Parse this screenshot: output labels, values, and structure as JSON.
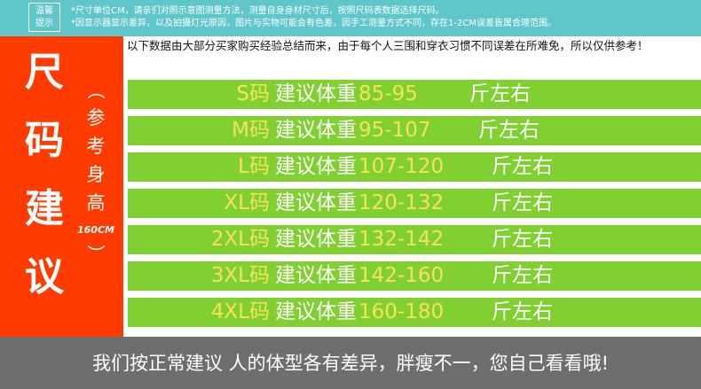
{
  "tip": {
    "line1": "温馨",
    "line2": "提示"
  },
  "top_note": {
    "line1": "*尺寸单位CM，请亲们对照示意图测量方法，测量自身身材尺寸后，按照尺码表数据选择尺码。",
    "line2": "*因显示器显示差异，以及拍摄灯光原因，图片与实物可能会有色差，因手工测量方式不同，存在1-2CM误差皆属合理范围。"
  },
  "left_title": [
    "尺",
    "码",
    "建",
    "议"
  ],
  "reference": {
    "open_paren": "（",
    "chars": [
      "参",
      "考",
      "身",
      "高"
    ],
    "height": "160CM",
    "close_paren": "）"
  },
  "intro": "以下数据由大部分买家购买经验总结而来，由于每个人三围和穿衣习惯不同误差在所难免，所以仅供参考！",
  "rows": [
    {
      "size": "S码",
      "label": "建议体重",
      "range": "85-95",
      "unit": "斤左右"
    },
    {
      "size": "M码",
      "label": "建议体重",
      "range": "95-107",
      "unit": "斤左右"
    },
    {
      "size": "L码",
      "label": "建议体重",
      "range": "107-120",
      "unit": "斤左右"
    },
    {
      "size": "XL码",
      "label": "建议体重",
      "range": "120-132",
      "unit": "斤左右"
    },
    {
      "size": "2XL码",
      "label": "建议体重",
      "range": "132-142",
      "unit": "斤左右"
    },
    {
      "size": "3XL码",
      "label": "建议体重",
      "range": "142-160",
      "unit": "斤左右"
    },
    {
      "size": "4XL码",
      "label": "建议体重",
      "range": "160-180",
      "unit": "斤左右"
    }
  ],
  "bottom_text": "我们按正常建议 人的体型各有差异，胖瘦不一，您自己看看哦!",
  "colors": {
    "top_bar": "#5fc6c9",
    "left_panel": "#ff3b00",
    "row_background": "#7fd030",
    "highlight_text": "#f9e25a",
    "bottom_bar": "#6e6e6e"
  }
}
